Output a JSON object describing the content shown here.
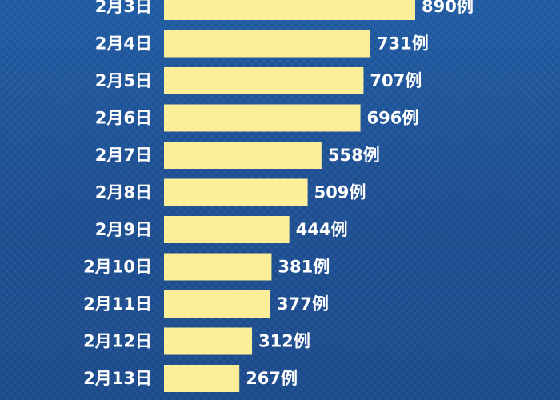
{
  "colors": {
    "bar": "#fdef9a",
    "background_top": "#1e5aa2",
    "background_bottom": "#1b4a8c",
    "text": "#ffffff"
  },
  "chart_data": {
    "type": "bar",
    "orientation": "horizontal",
    "title": "",
    "xlabel": "",
    "ylabel": "",
    "categories": [
      "2月3日",
      "2月4日",
      "2月5日",
      "2月6日",
      "2月7日",
      "2月8日",
      "2月9日",
      "2月10日",
      "2月11日",
      "2月12日",
      "2月13日"
    ],
    "values": [
      890,
      731,
      707,
      696,
      558,
      509,
      444,
      381,
      377,
      312,
      267
    ],
    "data_labels": [
      "890例",
      "731例",
      "707例",
      "696例",
      "558例",
      "509例",
      "444例",
      "381例",
      "377例",
      "312例",
      "267例"
    ],
    "xlim": [
      0,
      890
    ],
    "grid": false,
    "legend": "none"
  }
}
